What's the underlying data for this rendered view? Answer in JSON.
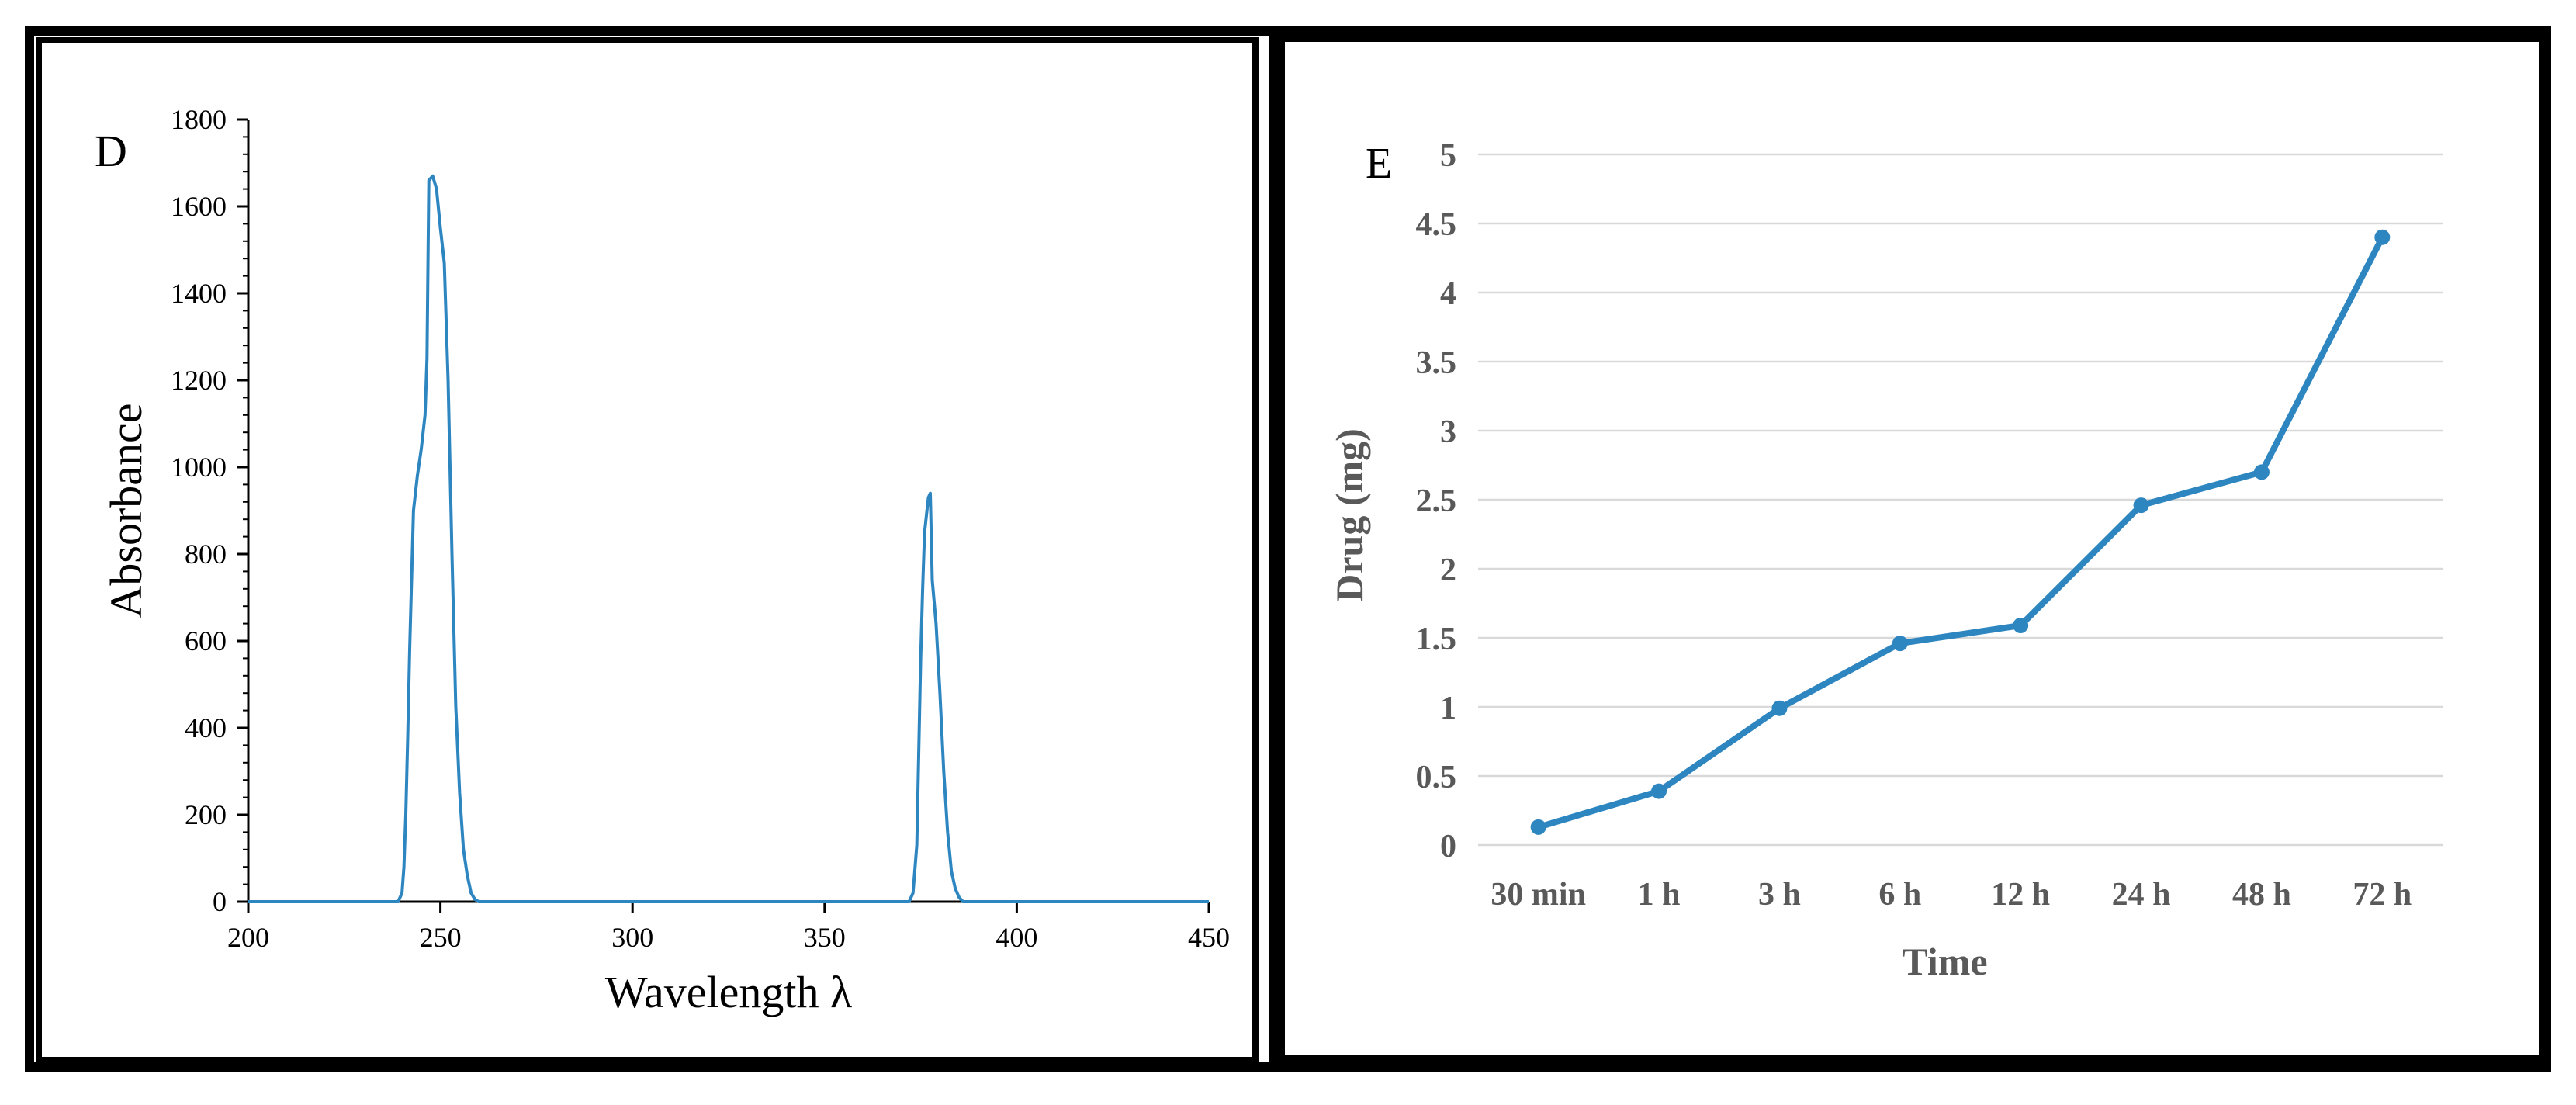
{
  "colors": {
    "line": "#2E86C1",
    "marker": "#2E86C1",
    "gridline": "#D9D9D9",
    "axis": "#000000",
    "frame": "#000000",
    "panel_e_label": "#595959"
  },
  "chart_data": [
    {
      "type": "line",
      "panel_label": "D",
      "title": "",
      "xlabel": "Wavelength  λ",
      "ylabel": "Absorbance",
      "xlim": [
        200,
        450
      ],
      "ylim": [
        0,
        1800
      ],
      "xticks": [
        200,
        250,
        300,
        350,
        400,
        450
      ],
      "yticks": [
        0,
        200,
        400,
        600,
        800,
        1000,
        1200,
        1400,
        1600,
        1800
      ],
      "grid": false,
      "legend": "none",
      "series": [
        {
          "x": [
            200,
            239,
            240,
            240.5,
            241,
            241.5,
            242,
            243,
            244,
            245,
            246,
            246.5,
            247,
            248,
            249,
            250,
            251,
            252,
            253,
            254,
            255,
            256,
            257,
            258,
            259,
            260,
            300,
            350,
            372,
            373,
            374,
            375,
            375.5,
            376,
            377,
            377.5,
            378,
            379,
            380,
            381,
            382,
            383,
            384,
            385,
            386,
            400,
            450
          ],
          "y": [
            0,
            0,
            20,
            80,
            200,
            380,
            580,
            900,
            980,
            1040,
            1120,
            1250,
            1660,
            1670,
            1640,
            1550,
            1470,
            1200,
            800,
            450,
            250,
            120,
            60,
            20,
            5,
            0,
            0,
            0,
            0,
            20,
            130,
            560,
            720,
            850,
            930,
            940,
            740,
            640,
            480,
            300,
            160,
            70,
            30,
            10,
            0,
            0,
            0
          ]
        }
      ]
    },
    {
      "type": "line",
      "panel_label": "E",
      "title": "",
      "xlabel": "Time",
      "ylabel": "Drug (mg)",
      "ylim": [
        0,
        5
      ],
      "yticks": [
        "0",
        "0.5",
        "1",
        "1.5",
        "2",
        "2.5",
        "3",
        "3.5",
        "4",
        "4.5",
        "5"
      ],
      "grid": true,
      "legend": "none",
      "categories": [
        "30 min",
        "1 h",
        "3 h",
        "6 h",
        "12 h",
        "24 h",
        "48 h",
        "72 h"
      ],
      "series": [
        {
          "values": [
            0.13,
            0.39,
            0.99,
            1.46,
            1.59,
            2.46,
            2.7,
            4.4
          ]
        }
      ]
    }
  ]
}
